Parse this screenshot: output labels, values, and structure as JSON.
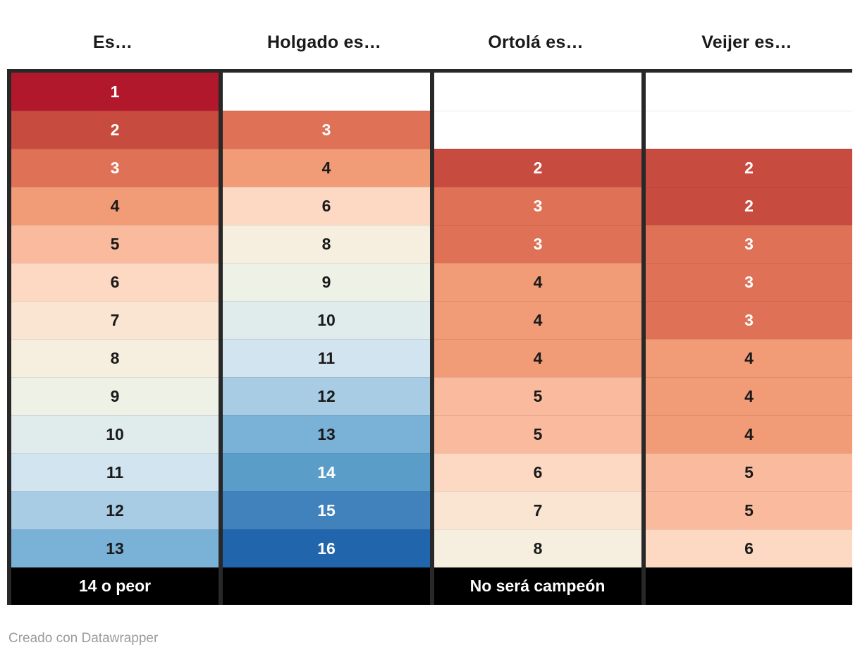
{
  "chart_data": {
    "type": "heatmap",
    "title": "",
    "columns": [
      "Es…",
      "Holgado es…",
      "Ortolá es…",
      "Veijer es…"
    ],
    "rows": [
      [
        1,
        null,
        null,
        null
      ],
      [
        2,
        3,
        null,
        null
      ],
      [
        3,
        4,
        2,
        2
      ],
      [
        4,
        6,
        3,
        2
      ],
      [
        5,
        8,
        3,
        3
      ],
      [
        6,
        9,
        4,
        3
      ],
      [
        7,
        10,
        4,
        3
      ],
      [
        8,
        11,
        4,
        4
      ],
      [
        9,
        12,
        5,
        4
      ],
      [
        10,
        13,
        5,
        4
      ],
      [
        11,
        14,
        6,
        5
      ],
      [
        12,
        15,
        7,
        5
      ],
      [
        13,
        16,
        8,
        6
      ]
    ],
    "footer_row": [
      "14 o peor",
      "No será campeón"
    ],
    "color_scale": {
      "palette": "diverging red-blue",
      "domain": [
        1,
        16
      ],
      "stops": [
        "#b2182b",
        "#c84b3f",
        "#de7156",
        "#f29b77",
        "#f9ba9e",
        "#fdd8c3",
        "#fae5d3",
        "#f6eede",
        "#eef1e6",
        "#e0ebec",
        "#d2e4f0",
        "#a8cce3",
        "#7ab2d7",
        "#5a9dc9",
        "#4182bc",
        "#2166ac"
      ]
    },
    "legend_position": "none",
    "grid": false
  },
  "table": {
    "columns": [
      {
        "header": "Es…",
        "footer": "14 o peor",
        "cells": [
          {
            "v": "1",
            "bg": "#b2182b",
            "fg": "#ffffff"
          },
          {
            "v": "2",
            "bg": "#c84b3f",
            "fg": "#ffffff"
          },
          {
            "v": "3",
            "bg": "#de7156",
            "fg": "#ffffff"
          },
          {
            "v": "4",
            "bg": "#f29b77",
            "fg": "#1a1a1a"
          },
          {
            "v": "5",
            "bg": "#f9ba9e",
            "fg": "#1a1a1a"
          },
          {
            "v": "6",
            "bg": "#fdd8c3",
            "fg": "#1a1a1a"
          },
          {
            "v": "7",
            "bg": "#fae5d3",
            "fg": "#1a1a1a"
          },
          {
            "v": "8",
            "bg": "#f6eede",
            "fg": "#1a1a1a"
          },
          {
            "v": "9",
            "bg": "#eef1e6",
            "fg": "#1a1a1a"
          },
          {
            "v": "10",
            "bg": "#e0ebec",
            "fg": "#1a1a1a"
          },
          {
            "v": "11",
            "bg": "#d2e4f0",
            "fg": "#1a1a1a"
          },
          {
            "v": "12",
            "bg": "#a8cce3",
            "fg": "#1a1a1a"
          },
          {
            "v": "13",
            "bg": "#7ab2d7",
            "fg": "#1a1a1a"
          }
        ]
      },
      {
        "header": "Holgado es…",
        "footer": "",
        "cells": [
          {
            "v": "",
            "bg": "#ffffff",
            "fg": "#1a1a1a"
          },
          {
            "v": "3",
            "bg": "#de7156",
            "fg": "#ffffff"
          },
          {
            "v": "4",
            "bg": "#f29b77",
            "fg": "#1a1a1a"
          },
          {
            "v": "6",
            "bg": "#fdd8c3",
            "fg": "#1a1a1a"
          },
          {
            "v": "8",
            "bg": "#f6eede",
            "fg": "#1a1a1a"
          },
          {
            "v": "9",
            "bg": "#eef1e6",
            "fg": "#1a1a1a"
          },
          {
            "v": "10",
            "bg": "#e0ebec",
            "fg": "#1a1a1a"
          },
          {
            "v": "11",
            "bg": "#d2e4f0",
            "fg": "#1a1a1a"
          },
          {
            "v": "12",
            "bg": "#a8cce3",
            "fg": "#1a1a1a"
          },
          {
            "v": "13",
            "bg": "#7ab2d7",
            "fg": "#1a1a1a"
          },
          {
            "v": "14",
            "bg": "#5a9dc9",
            "fg": "#ffffff"
          },
          {
            "v": "15",
            "bg": "#4182bc",
            "fg": "#ffffff"
          },
          {
            "v": "16",
            "bg": "#2166ac",
            "fg": "#ffffff"
          }
        ]
      },
      {
        "header": "Ortolá es…",
        "footer": "",
        "cells": [
          {
            "v": "",
            "bg": "#ffffff",
            "fg": "#1a1a1a"
          },
          {
            "v": "",
            "bg": "#ffffff",
            "fg": "#1a1a1a"
          },
          {
            "v": "2",
            "bg": "#c84b3f",
            "fg": "#ffffff"
          },
          {
            "v": "3",
            "bg": "#de7156",
            "fg": "#ffffff"
          },
          {
            "v": "3",
            "bg": "#de7156",
            "fg": "#ffffff"
          },
          {
            "v": "4",
            "bg": "#f29b77",
            "fg": "#1a1a1a"
          },
          {
            "v": "4",
            "bg": "#f29b77",
            "fg": "#1a1a1a"
          },
          {
            "v": "4",
            "bg": "#f29b77",
            "fg": "#1a1a1a"
          },
          {
            "v": "5",
            "bg": "#f9ba9e",
            "fg": "#1a1a1a"
          },
          {
            "v": "5",
            "bg": "#f9ba9e",
            "fg": "#1a1a1a"
          },
          {
            "v": "6",
            "bg": "#fdd8c3",
            "fg": "#1a1a1a"
          },
          {
            "v": "7",
            "bg": "#fae5d3",
            "fg": "#1a1a1a"
          },
          {
            "v": "8",
            "bg": "#f6eede",
            "fg": "#1a1a1a"
          }
        ]
      },
      {
        "header": "Veijer es…",
        "footer": "",
        "cells": [
          {
            "v": "",
            "bg": "#ffffff",
            "fg": "#1a1a1a"
          },
          {
            "v": "",
            "bg": "#ffffff",
            "fg": "#1a1a1a"
          },
          {
            "v": "2",
            "bg": "#c84b3f",
            "fg": "#ffffff"
          },
          {
            "v": "2",
            "bg": "#c84b3f",
            "fg": "#ffffff"
          },
          {
            "v": "3",
            "bg": "#de7156",
            "fg": "#ffffff"
          },
          {
            "v": "3",
            "bg": "#de7156",
            "fg": "#ffffff"
          },
          {
            "v": "3",
            "bg": "#de7156",
            "fg": "#ffffff"
          },
          {
            "v": "4",
            "bg": "#f29b77",
            "fg": "#1a1a1a"
          },
          {
            "v": "4",
            "bg": "#f29b77",
            "fg": "#1a1a1a"
          },
          {
            "v": "4",
            "bg": "#f29b77",
            "fg": "#1a1a1a"
          },
          {
            "v": "5",
            "bg": "#f9ba9e",
            "fg": "#1a1a1a"
          },
          {
            "v": "5",
            "bg": "#f9ba9e",
            "fg": "#1a1a1a"
          },
          {
            "v": "6",
            "bg": "#fdd8c3",
            "fg": "#1a1a1a"
          }
        ]
      }
    ],
    "footer_merged": "No será campeón"
  },
  "credit": "Creado con Datawrapper",
  "colors": {
    "border": "#282828",
    "footer_bg": "#000000",
    "header_text": "#1a1a1a",
    "credit_text": "#9b9b9b"
  }
}
